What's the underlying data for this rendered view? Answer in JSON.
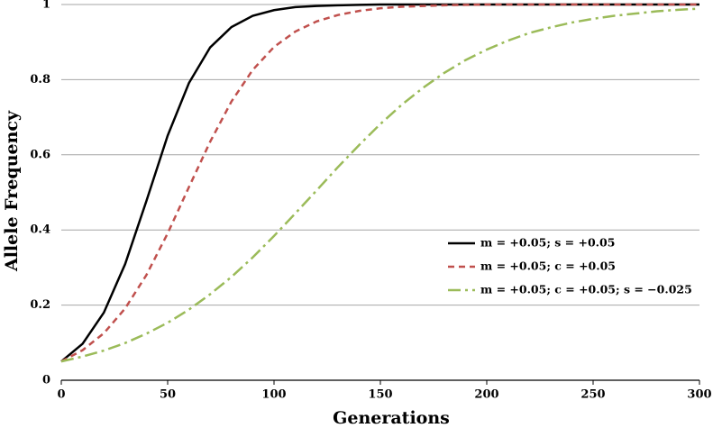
{
  "chart_data": {
    "type": "line",
    "x_label": "Generations",
    "y_label": "Allele Frequency",
    "x": [
      0,
      10,
      20,
      30,
      40,
      50,
      60,
      70,
      80,
      90,
      100,
      110,
      120,
      130,
      140,
      150,
      160,
      170,
      180,
      190,
      200,
      210,
      220,
      230,
      240,
      250,
      260,
      270,
      280,
      290,
      300
    ],
    "series": [
      {
        "name": "m = +0.05; s = +0.05",
        "color": "#000000",
        "dash": "solid",
        "values": [
          0.05,
          0.097,
          0.18,
          0.309,
          0.477,
          0.651,
          0.791,
          0.886,
          0.94,
          0.97,
          0.985,
          0.993,
          0.996,
          0.998,
          0.999,
          1,
          1,
          1,
          1,
          1,
          1,
          1,
          1,
          1,
          1,
          1,
          1,
          1,
          1,
          1,
          1
        ]
      },
      {
        "name": "m = +0.05; c = +0.05",
        "color": "#c0504d",
        "dash": "dashed",
        "values": [
          0.05,
          0.08,
          0.125,
          0.191,
          0.28,
          0.391,
          0.514,
          0.635,
          0.742,
          0.826,
          0.887,
          0.928,
          0.955,
          0.972,
          0.983,
          0.99,
          0.994,
          0.996,
          0.998,
          0.999,
          1,
          1,
          1,
          1,
          1,
          1,
          1,
          1,
          1,
          1,
          1
        ]
      },
      {
        "name": "m = +0.05; c = +0.05; s = −0.025",
        "color": "#9bbb59",
        "dash": "dashdot",
        "values": [
          0.05,
          0.063,
          0.079,
          0.099,
          0.124,
          0.153,
          0.188,
          0.229,
          0.275,
          0.327,
          0.384,
          0.444,
          0.505,
          0.567,
          0.626,
          0.682,
          0.733,
          0.778,
          0.818,
          0.852,
          0.88,
          0.904,
          0.924,
          0.939,
          0.952,
          0.962,
          0.97,
          0.976,
          0.982,
          0.986,
          0.989
        ]
      }
    ],
    "xlim": [
      0,
      300
    ],
    "xticks": [
      0,
      50,
      100,
      150,
      200,
      250,
      300
    ],
    "ylim": [
      0,
      1
    ],
    "yticks": [
      0,
      0.2,
      0.4,
      0.6,
      0.8,
      1
    ],
    "grid": true,
    "legend": "right"
  }
}
